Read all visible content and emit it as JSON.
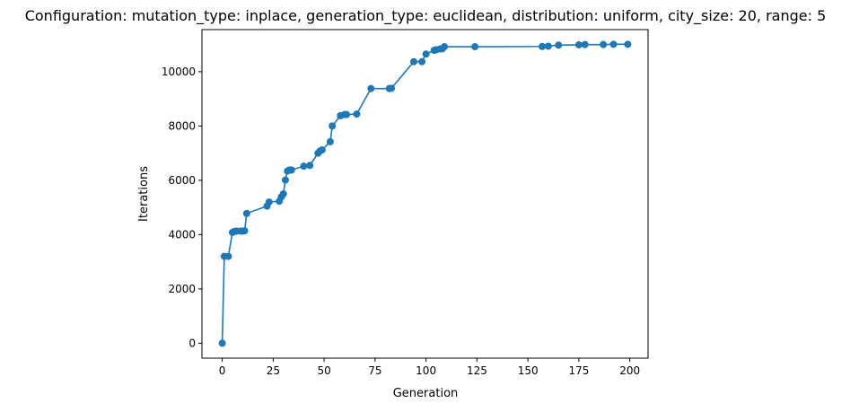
{
  "chart_data": {
    "type": "line",
    "title": "Configuration: mutation_type: inplace, generation_type: euclidean, distribution: uniform, city_size: 20, range: 5",
    "xlabel": "Generation",
    "ylabel": "Iterations",
    "xlim": [
      -9.95,
      208.95
    ],
    "ylim": [
      -550,
      11550
    ],
    "xticks": [
      0,
      25,
      50,
      75,
      100,
      125,
      150,
      175,
      200
    ],
    "yticks": [
      0,
      2000,
      4000,
      6000,
      8000,
      10000
    ],
    "grid": false,
    "color": "#1f77b4",
    "marker": "circle",
    "series": [
      {
        "x": [
          0,
          1,
          3,
          5,
          6,
          7,
          9,
          10,
          11,
          12,
          22,
          23,
          28,
          29,
          30,
          31,
          32,
          33,
          34,
          40,
          43,
          47,
          48,
          49,
          53,
          54,
          58,
          60,
          61,
          66,
          73,
          82,
          83,
          94,
          98,
          100,
          104,
          105,
          107,
          108,
          109,
          124,
          157,
          160,
          165,
          175,
          178,
          187,
          192,
          199
        ],
        "y": [
          0,
          3200,
          3200,
          4080,
          4120,
          4130,
          4130,
          4130,
          4140,
          4780,
          5050,
          5200,
          5230,
          5390,
          5500,
          6010,
          6340,
          6380,
          6380,
          6520,
          6550,
          7000,
          7080,
          7120,
          7420,
          8000,
          8380,
          8420,
          8420,
          8440,
          9380,
          9380,
          9390,
          10370,
          10370,
          10650,
          10790,
          10810,
          10840,
          10840,
          10920,
          10920,
          10930,
          10940,
          10980,
          10990,
          11000,
          11000,
          11010,
          11010
        ]
      }
    ]
  }
}
